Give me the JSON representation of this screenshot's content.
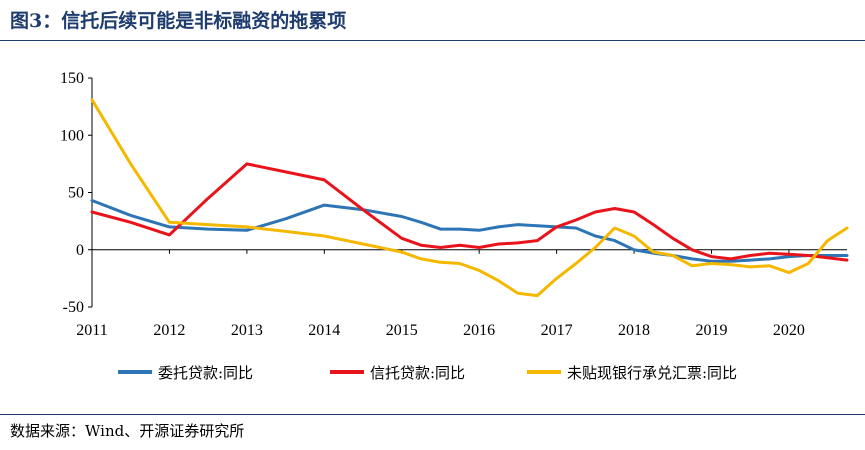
{
  "title": "图3：信托后续可能是非标融资的拖累项",
  "source": "数据来源：Wind、开源证券研究所",
  "chart_data": {
    "type": "line",
    "title": "",
    "xlabel": "",
    "ylabel": "",
    "xlim": [
      2011,
      2020.75
    ],
    "ylim": [
      -50,
      150
    ],
    "yticks": [
      -50,
      0,
      50,
      100,
      150
    ],
    "ytick_labels": [
      "-50",
      "0",
      "50",
      "100",
      "150"
    ],
    "xticks": [
      2011,
      2012,
      2013,
      2014,
      2015,
      2016,
      2017,
      2018,
      2019,
      2020
    ],
    "xtick_labels": [
      "2011",
      "2012",
      "2013",
      "2014",
      "2015",
      "2016",
      "2017",
      "2018",
      "2019",
      "2020"
    ],
    "grid": false,
    "legend_position": "bottom",
    "series": [
      {
        "name": "委托贷款:同比",
        "color": "#2e75b6",
        "points": [
          [
            2011.0,
            43
          ],
          [
            2011.5,
            30
          ],
          [
            2012.0,
            20
          ],
          [
            2012.5,
            18
          ],
          [
            2013.0,
            17
          ],
          [
            2013.5,
            27
          ],
          [
            2014.0,
            39
          ],
          [
            2014.5,
            35
          ],
          [
            2015.0,
            29
          ],
          [
            2015.25,
            24
          ],
          [
            2015.5,
            18
          ],
          [
            2015.75,
            18
          ],
          [
            2016.0,
            17
          ],
          [
            2016.25,
            20
          ],
          [
            2016.5,
            22
          ],
          [
            2016.75,
            21
          ],
          [
            2017.0,
            20
          ],
          [
            2017.25,
            19
          ],
          [
            2017.5,
            12
          ],
          [
            2017.75,
            8
          ],
          [
            2018.0,
            0
          ],
          [
            2018.25,
            -3
          ],
          [
            2018.5,
            -5
          ],
          [
            2018.75,
            -8
          ],
          [
            2019.0,
            -10
          ],
          [
            2019.25,
            -10
          ],
          [
            2019.5,
            -9
          ],
          [
            2019.75,
            -8
          ],
          [
            2020.0,
            -6
          ],
          [
            2020.25,
            -5
          ],
          [
            2020.5,
            -5
          ],
          [
            2020.75,
            -5
          ]
        ]
      },
      {
        "name": "信托贷款:同比",
        "color": "#e8141c",
        "points": [
          [
            2011.0,
            33
          ],
          [
            2011.5,
            24
          ],
          [
            2012.0,
            13
          ],
          [
            2012.5,
            45
          ],
          [
            2013.0,
            75
          ],
          [
            2013.5,
            68
          ],
          [
            2014.0,
            61
          ],
          [
            2014.5,
            35
          ],
          [
            2015.0,
            10
          ],
          [
            2015.25,
            4
          ],
          [
            2015.5,
            2
          ],
          [
            2015.75,
            4
          ],
          [
            2016.0,
            2
          ],
          [
            2016.25,
            5
          ],
          [
            2016.5,
            6
          ],
          [
            2016.75,
            8
          ],
          [
            2017.0,
            20
          ],
          [
            2017.25,
            26
          ],
          [
            2017.5,
            33
          ],
          [
            2017.75,
            36
          ],
          [
            2018.0,
            33
          ],
          [
            2018.25,
            22
          ],
          [
            2018.5,
            10
          ],
          [
            2018.75,
            0
          ],
          [
            2019.0,
            -6
          ],
          [
            2019.25,
            -8
          ],
          [
            2019.5,
            -5
          ],
          [
            2019.75,
            -3
          ],
          [
            2020.0,
            -4
          ],
          [
            2020.25,
            -5
          ],
          [
            2020.5,
            -7
          ],
          [
            2020.75,
            -9
          ]
        ]
      },
      {
        "name": "未贴现银行承兑汇票:同比",
        "color": "#f5b800",
        "points": [
          [
            2011.0,
            131
          ],
          [
            2011.5,
            75
          ],
          [
            2012.0,
            24
          ],
          [
            2012.5,
            22
          ],
          [
            2013.0,
            20
          ],
          [
            2013.5,
            16
          ],
          [
            2014.0,
            12
          ],
          [
            2014.5,
            5
          ],
          [
            2015.0,
            -2
          ],
          [
            2015.25,
            -8
          ],
          [
            2015.5,
            -11
          ],
          [
            2015.75,
            -12
          ],
          [
            2016.0,
            -18
          ],
          [
            2016.25,
            -27
          ],
          [
            2016.5,
            -38
          ],
          [
            2016.75,
            -40
          ],
          [
            2017.0,
            -25
          ],
          [
            2017.25,
            -12
          ],
          [
            2017.5,
            2
          ],
          [
            2017.75,
            19
          ],
          [
            2018.0,
            12
          ],
          [
            2018.25,
            -2
          ],
          [
            2018.5,
            -5
          ],
          [
            2018.75,
            -14
          ],
          [
            2019.0,
            -12
          ],
          [
            2019.25,
            -13
          ],
          [
            2019.5,
            -15
          ],
          [
            2019.75,
            -14
          ],
          [
            2020.0,
            -20
          ],
          [
            2020.25,
            -12
          ],
          [
            2020.5,
            8
          ],
          [
            2020.75,
            19
          ]
        ]
      }
    ]
  }
}
